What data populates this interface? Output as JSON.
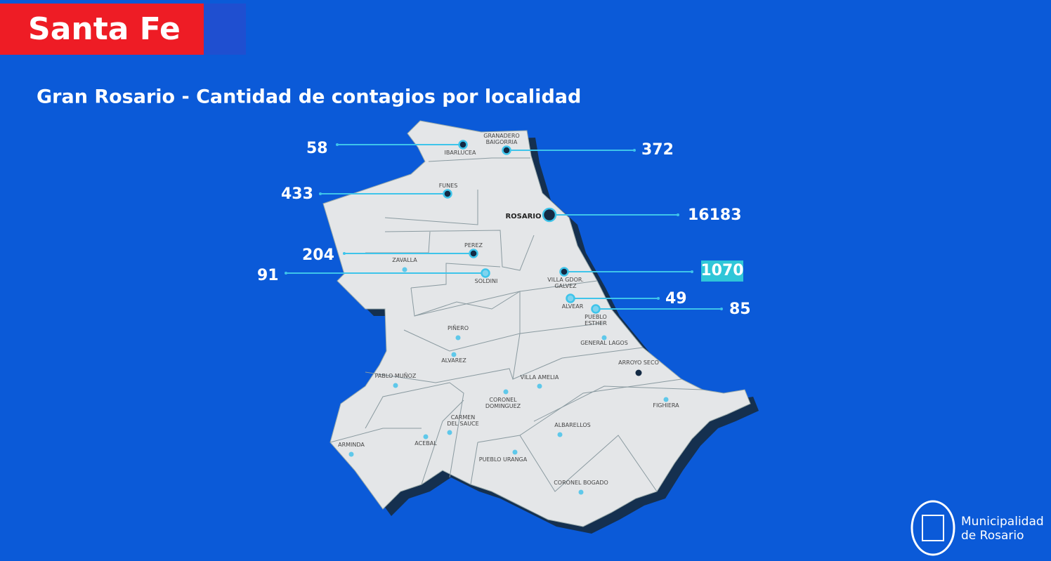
{
  "header": {
    "badge": "Santa Fe",
    "title": "Gran Rosario - Cantidad de contagios por localidad"
  },
  "localities": [
    {
      "name": [
        "IBARLUCEA"
      ],
      "count": 58
    },
    {
      "name": [
        "GRANADERO",
        "BAIGORRIA"
      ],
      "count": 372
    },
    {
      "name": [
        "FUNES"
      ],
      "count": 433
    },
    {
      "name": [
        "ROSARIO"
      ],
      "count": 16183
    },
    {
      "name": [
        "PEREZ"
      ],
      "count": 204
    },
    {
      "name": [
        "SOLDINI"
      ],
      "count": 91
    },
    {
      "name": [
        "VILLA GDOR.",
        "GALVEZ"
      ],
      "count": 1070
    },
    {
      "name": [
        "ALVEAR"
      ],
      "count": 49
    },
    {
      "name": [
        "PUEBLO",
        "ESTHER"
      ],
      "count": 85
    }
  ],
  "other_localities": [
    {
      "name": [
        "ZAVALLA"
      ]
    },
    {
      "name": [
        "PIÑERO"
      ]
    },
    {
      "name": [
        "ALVAREZ"
      ]
    },
    {
      "name": [
        "PABLO MUÑOZ"
      ]
    },
    {
      "name": [
        "ARMINDA"
      ]
    },
    {
      "name": [
        "ACEBAL"
      ]
    },
    {
      "name": [
        "CARMEN",
        "DEL SAUCE"
      ]
    },
    {
      "name": [
        "CORONEL",
        "DOMINGUEZ"
      ]
    },
    {
      "name": [
        "VILLA AMELIA"
      ]
    },
    {
      "name": [
        "ALBARELLOS"
      ]
    },
    {
      "name": [
        "PUEBLO URANGA"
      ]
    },
    {
      "name": [
        "CORONEL BOGADO"
      ]
    },
    {
      "name": [
        "GENERAL LAGOS"
      ]
    },
    {
      "name": [
        "ARROYO SECO"
      ]
    },
    {
      "name": [
        "FIGHIERA"
      ]
    }
  ],
  "logo": {
    "line1": "Municipalidad",
    "line2": "de Rosario"
  }
}
